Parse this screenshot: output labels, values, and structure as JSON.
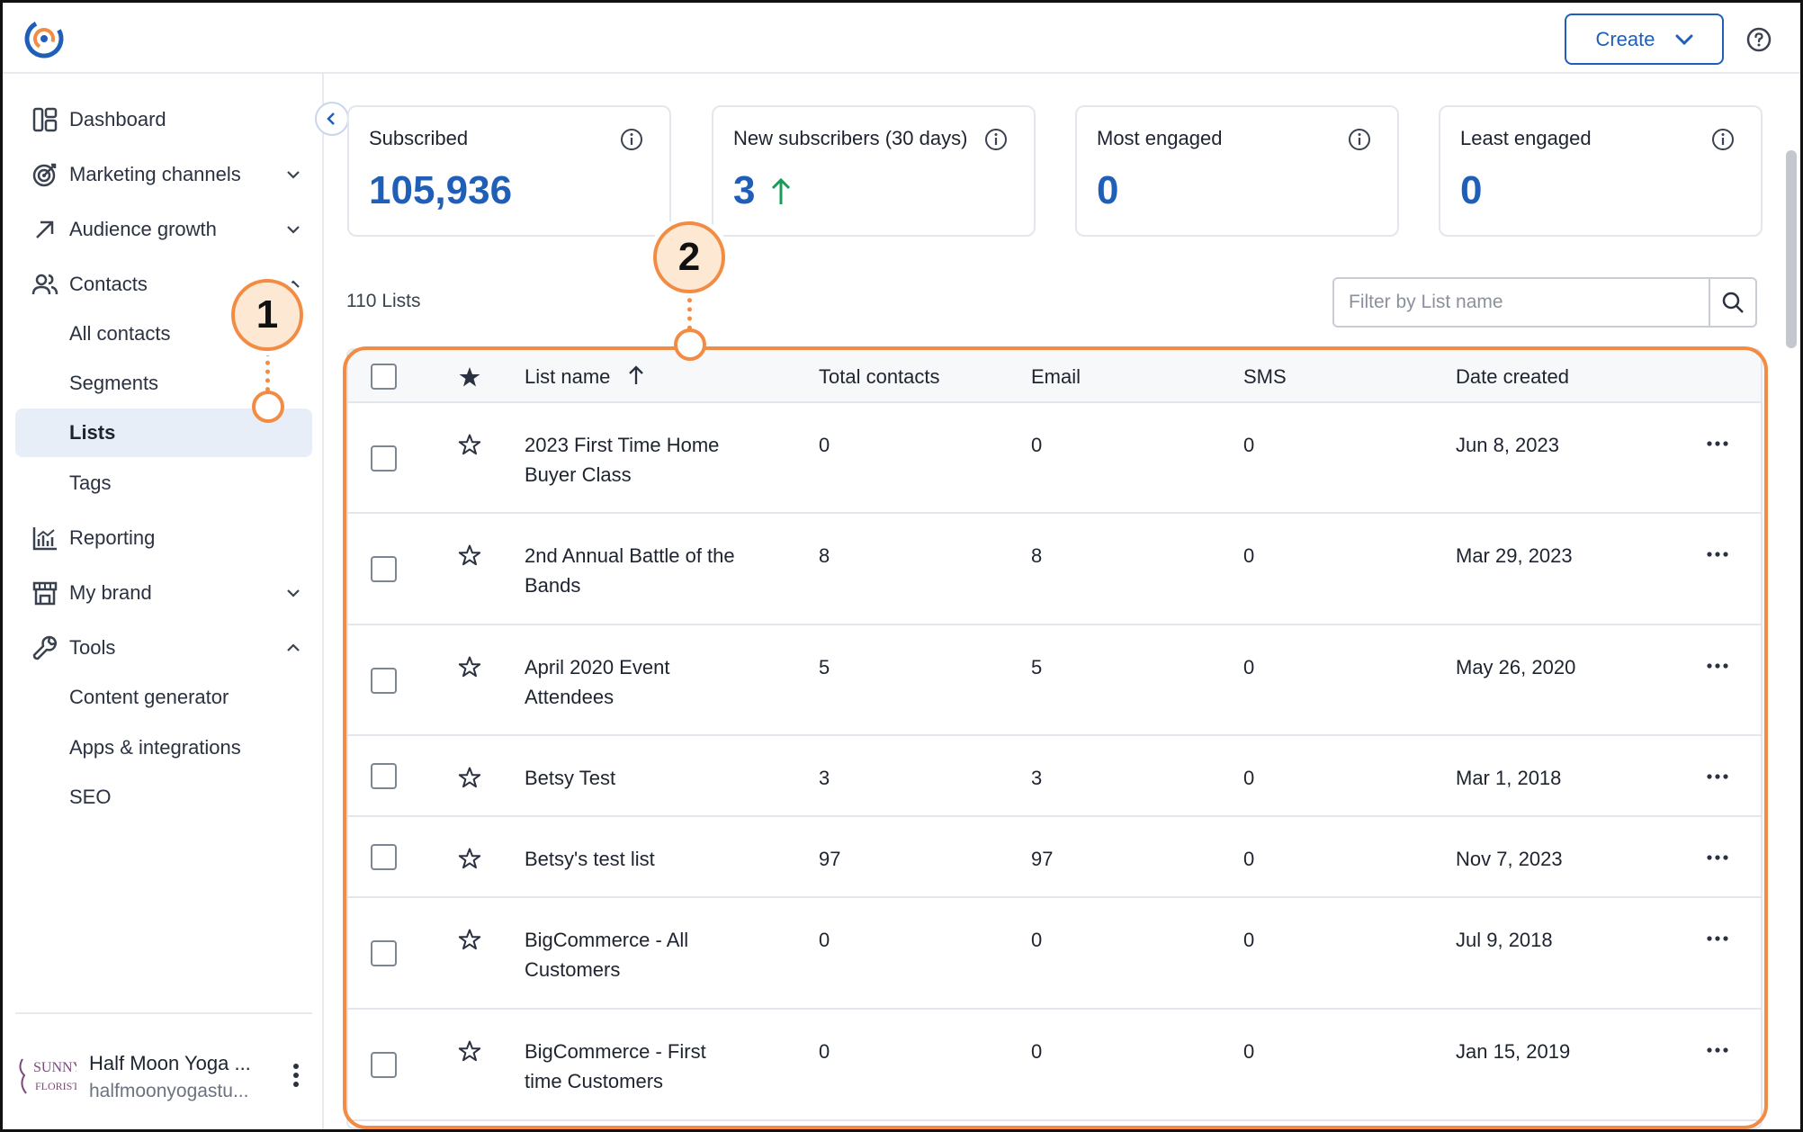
{
  "header": {
    "create_label": "Create"
  },
  "sidebar": {
    "items": [
      {
        "label": "Dashboard",
        "icon": "dashboard-icon"
      },
      {
        "label": "Marketing channels",
        "icon": "target-icon"
      },
      {
        "label": "Audience growth",
        "icon": "arrow-up-right-icon"
      },
      {
        "label": "Contacts",
        "icon": "people-icon"
      },
      {
        "label": "All contacts"
      },
      {
        "label": "Segments"
      },
      {
        "label": "Lists"
      },
      {
        "label": "Tags"
      },
      {
        "label": "Reporting",
        "icon": "bar-chart-icon"
      },
      {
        "label": "My brand",
        "icon": "storefront-icon"
      },
      {
        "label": "Tools",
        "icon": "wrench-icon"
      },
      {
        "label": "Content generator"
      },
      {
        "label": "Apps & integrations"
      },
      {
        "label": "SEO"
      }
    ],
    "account": {
      "name": "Half Moon Yoga ...",
      "email": "halfmoonyogastu..."
    }
  },
  "stats": [
    {
      "title": "Subscribed",
      "value": "105,936"
    },
    {
      "title": "New subscribers (30 days)",
      "value": "3",
      "trend": "up"
    },
    {
      "title": "Most engaged",
      "value": "0"
    },
    {
      "title": "Least engaged",
      "value": "0"
    }
  ],
  "lists": {
    "count_label": "110 Lists",
    "filter_placeholder": "Filter by List name",
    "columns": [
      "List name",
      "Total contacts",
      "Email",
      "SMS",
      "Date created"
    ],
    "rows": [
      {
        "name_line1": "2023 First Time Home",
        "name_line2": "Buyer Class",
        "total": "0",
        "email": "0",
        "sms": "0",
        "date": "Jun 8, 2023"
      },
      {
        "name_line1": "2nd Annual Battle of the",
        "name_line2": "Bands",
        "total": "8",
        "email": "8",
        "sms": "0",
        "date": "Mar 29, 2023"
      },
      {
        "name_line1": "April 2020 Event",
        "name_line2": "Attendees",
        "total": "5",
        "email": "5",
        "sms": "0",
        "date": "May 26, 2020"
      },
      {
        "name_line1": "Betsy Test",
        "name_line2": "",
        "total": "3",
        "email": "3",
        "sms": "0",
        "date": "Mar 1, 2018"
      },
      {
        "name_line1": "Betsy's test list",
        "name_line2": "",
        "total": "97",
        "email": "97",
        "sms": "0",
        "date": "Nov 7, 2023"
      },
      {
        "name_line1": "BigCommerce - All",
        "name_line2": "Customers",
        "total": "0",
        "email": "0",
        "sms": "0",
        "date": "Jul 9, 2018"
      },
      {
        "name_line1": "BigCommerce - First",
        "name_line2": "time Customers",
        "total": "0",
        "email": "0",
        "sms": "0",
        "date": "Jan 15, 2019"
      }
    ]
  },
  "callouts": [
    "1",
    "2"
  ],
  "colors": {
    "accent": "#1f5fb8",
    "callout": "#f28c44",
    "up_arrow": "#1a9b5a"
  }
}
